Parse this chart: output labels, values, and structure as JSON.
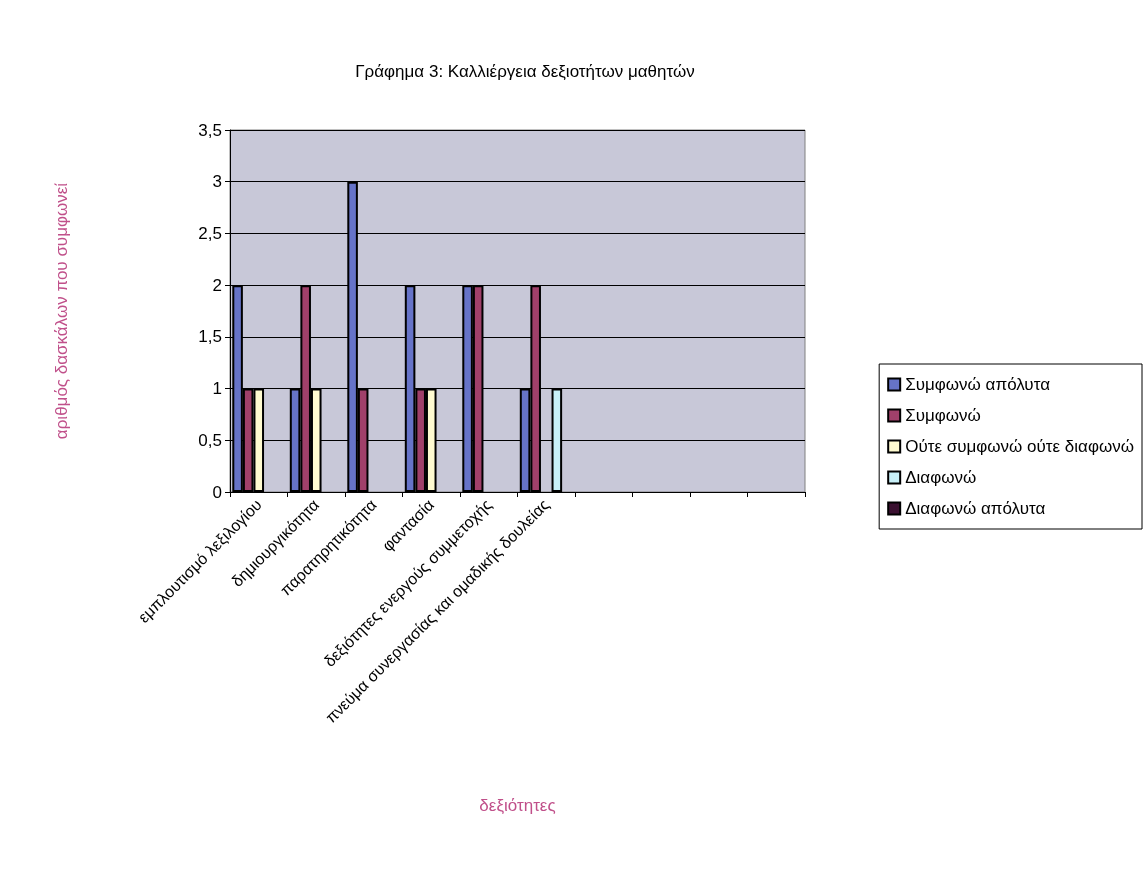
{
  "chart_data": {
    "type": "bar",
    "title": "Γράφημα 3: Καλλιέργεια δεξιοτήτων μαθητών",
    "xlabel": "δεξιότητες",
    "ylabel": "αριθμός δασκάλων που συμφωνεί",
    "categories": [
      "εμπλουτισμό λεξιλογίου",
      "δημιουργικότητα",
      "παρατηρητικότητα",
      "φαντασία",
      "δεξιότητες ενεργούς συμμετοχής",
      "πνεύμα συνεργασίας και ομαδικής δουλείας",
      null,
      null,
      null,
      null
    ],
    "series": [
      {
        "name": "Συμφωνώ απόλυτα",
        "color": "#6673c8",
        "values": [
          2,
          1,
          3,
          2,
          2,
          1,
          null,
          null,
          null,
          null
        ]
      },
      {
        "name": "Συμφωνώ",
        "color": "#a0406a",
        "values": [
          1,
          2,
          1,
          1,
          2,
          2,
          null,
          null,
          null,
          null
        ]
      },
      {
        "name": "Ούτε συμφωνώ ούτε διαφωνώ",
        "color": "#fffbd0",
        "values": [
          1,
          1,
          null,
          1,
          null,
          null,
          null,
          null,
          null,
          null
        ]
      },
      {
        "name": "Διαφωνώ",
        "color": "#c8f0f8",
        "values": [
          null,
          null,
          null,
          null,
          null,
          1,
          null,
          null,
          null,
          null
        ]
      },
      {
        "name": "Διαφωνώ απόλυτα",
        "color": "#3a1030",
        "values": [
          null,
          null,
          null,
          null,
          null,
          null,
          null,
          null,
          null,
          null
        ]
      }
    ],
    "ylim": [
      0,
      3.5
    ],
    "yticks": [
      0,
      {
        "value": 0.5,
        "label": "0,5"
      },
      1,
      {
        "value": 1.5,
        "label": "1,5"
      },
      2,
      {
        "value": 2.5,
        "label": "2,5"
      },
      3,
      {
        "value": 3.5,
        "label": "3,5"
      }
    ],
    "grid": "y",
    "legend": "right"
  }
}
